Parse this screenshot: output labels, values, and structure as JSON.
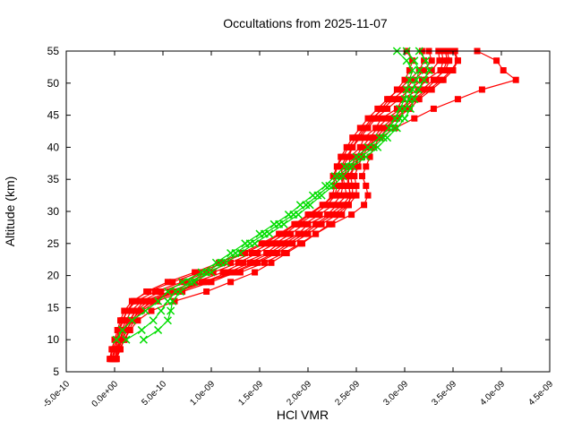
{
  "title": "Occultations from 2025-11-07",
  "x_axis": {
    "label": "HCl VMR",
    "tick_labels": [
      "-5.0e-10",
      "0.0e+00",
      "5.0e-10",
      "1.0e-09",
      "1.5e-09",
      "2.0e-09",
      "2.5e-09",
      "3.0e-09",
      "3.5e-09",
      "4.0e-09",
      "4.5e-09"
    ],
    "tick_values_1e9": [
      -0.5,
      0.0,
      0.5,
      1.0,
      1.5,
      2.0,
      2.5,
      3.0,
      3.5,
      4.0,
      4.5
    ],
    "range_1e9": [
      -0.5,
      4.5
    ]
  },
  "y_axis": {
    "label": "Altitude (km)",
    "tick_labels": [
      "5",
      "10",
      "15",
      "20",
      "25",
      "30",
      "35",
      "40",
      "45",
      "50",
      "55"
    ],
    "tick_values": [
      5,
      10,
      15,
      20,
      25,
      30,
      35,
      40,
      45,
      50,
      55
    ],
    "range": [
      5,
      55
    ]
  },
  "colors": {
    "red_series": "#ff0000",
    "green_series": "#00dd00",
    "frame": "#000000",
    "text": "#000000",
    "background": "#ffffff"
  },
  "chart_data": {
    "type": "line",
    "title": "Occultations from 2025-11-07",
    "xlabel": "HCl VMR",
    "ylabel": "Altitude (km)",
    "xlim_1e9": [
      -0.5,
      4.5
    ],
    "ylim_km": [
      5,
      55
    ],
    "x_value_scale": "values given in units of 1e-9 VMR",
    "grid": "off",
    "legend": "none",
    "ticks": "inward, mirrored on top and right frame",
    "altitudes_red_km": [
      7,
      8.5,
      10,
      11.5,
      13,
      14.5,
      16,
      17.5,
      19,
      20.5,
      22,
      23.5,
      25,
      26.5,
      28,
      29.5,
      31,
      32.5,
      34,
      35.5,
      37,
      38.5,
      40,
      41.5,
      43,
      44.5,
      46,
      47.5,
      49,
      50.5,
      52,
      53.5,
      55
    ],
    "altitudes_green_km": [
      10,
      11.5,
      13,
      14.5,
      16,
      17.5,
      19,
      20.5,
      22,
      23.5,
      25,
      26.5,
      28,
      29.5,
      31,
      32.5,
      34,
      35.5,
      37,
      38.5,
      40,
      41.5,
      43,
      44.5,
      46,
      47.5,
      49,
      50.5,
      52,
      53.5,
      55
    ],
    "series": [
      {
        "name": "red-profile-1",
        "group": "red",
        "color": "#ff0000",
        "marker": "square",
        "alt_grid": "altitudes_red_km",
        "vmr_1e9": [
          -0.02,
          0.01,
          0.06,
          0.08,
          0.15,
          0.22,
          0.3,
          0.57,
          0.83,
          1.12,
          1.33,
          1.57,
          1.7,
          1.9,
          2.0,
          2.2,
          2.3,
          2.4,
          2.38,
          2.36,
          2.42,
          2.44,
          2.54,
          2.58,
          2.7,
          2.76,
          2.92,
          2.98,
          3.14,
          3.22,
          3.37,
          3.4,
          3.38
        ]
      },
      {
        "name": "red-profile-2",
        "group": "red",
        "color": "#ff0000",
        "marker": "square",
        "alt_grid": "altitudes_red_km",
        "vmr_1e9": [
          0.02,
          0.05,
          0.1,
          0.15,
          0.2,
          0.28,
          0.44,
          0.7,
          1.0,
          1.25,
          1.48,
          1.68,
          1.84,
          2.0,
          2.14,
          2.3,
          2.42,
          2.5,
          2.5,
          2.48,
          2.52,
          2.56,
          2.62,
          2.7,
          2.8,
          2.9,
          3.02,
          3.12,
          3.25,
          3.38,
          3.48,
          3.55,
          3.5
        ]
      },
      {
        "name": "red-profile-3",
        "group": "red",
        "color": "#ff0000",
        "marker": "square",
        "alt_grid": "altitudes_red_km",
        "vmr_1e9": [
          -0.04,
          -0.02,
          0.02,
          0.04,
          0.08,
          0.13,
          0.22,
          0.42,
          0.7,
          0.95,
          1.2,
          1.42,
          1.6,
          1.76,
          1.9,
          2.06,
          2.2,
          2.28,
          2.3,
          2.28,
          2.3,
          2.36,
          2.42,
          2.5,
          2.58,
          2.66,
          2.78,
          2.88,
          3.0,
          3.1,
          3.2,
          3.28,
          3.25
        ]
      },
      {
        "name": "red-profile-4",
        "group": "red",
        "color": "#ff0000",
        "marker": "square",
        "alt_grid": "altitudes_red_km",
        "vmr_1e9": [
          0.02,
          0.06,
          0.1,
          0.16,
          0.24,
          0.38,
          0.62,
          0.95,
          1.2,
          1.45,
          1.62,
          1.78,
          1.94,
          2.08,
          2.22,
          2.35,
          2.42,
          2.44,
          2.42,
          2.42,
          2.48,
          2.52,
          2.6,
          2.68,
          2.76,
          2.88,
          2.98,
          3.1,
          3.22,
          3.32,
          3.4,
          3.44,
          3.42
        ]
      },
      {
        "name": "red-profile-5",
        "group": "red",
        "color": "#ff0000",
        "marker": "square",
        "alt_grid": "altitudes_red_km",
        "vmr_1e9": [
          -0.03,
          0.0,
          0.03,
          0.05,
          0.09,
          0.13,
          0.2,
          0.33,
          0.55,
          0.83,
          1.08,
          1.32,
          1.52,
          1.7,
          1.86,
          2.0,
          2.15,
          2.28,
          2.35,
          2.36,
          2.34,
          2.4,
          2.46,
          2.54,
          2.62,
          2.7,
          2.82,
          2.94,
          3.05,
          3.18,
          3.28,
          3.36,
          3.35
        ]
      },
      {
        "name": "red-profile-6",
        "group": "red",
        "color": "#ff0000",
        "marker": "square",
        "alt_grid": "altitudes_red_km",
        "vmr_1e9": [
          0.0,
          0.03,
          0.07,
          0.12,
          0.18,
          0.25,
          0.4,
          0.65,
          0.95,
          1.22,
          1.45,
          1.65,
          1.8,
          1.96,
          2.1,
          2.26,
          2.4,
          2.46,
          2.46,
          2.44,
          2.48,
          2.54,
          2.6,
          2.75,
          2.9,
          3.1,
          3.3,
          3.55,
          3.8,
          4.15,
          4.02,
          3.95,
          3.75
        ]
      },
      {
        "name": "red-profile-7",
        "group": "red",
        "color": "#ff0000",
        "marker": "square",
        "alt_grid": "altitudes_red_km",
        "vmr_1e9": [
          -0.02,
          0.0,
          0.04,
          0.07,
          0.12,
          0.17,
          0.28,
          0.48,
          0.75,
          1.02,
          1.28,
          1.48,
          1.66,
          1.82,
          1.96,
          2.12,
          2.26,
          2.34,
          2.36,
          2.34,
          2.36,
          2.42,
          2.46,
          2.52,
          2.6,
          2.68,
          2.76,
          2.84,
          2.92,
          3.0,
          3.05,
          3.08,
          3.02
        ]
      },
      {
        "name": "red-profile-8",
        "group": "red",
        "color": "#ff0000",
        "marker": "square",
        "alt_grid": "altitudes_red_km",
        "vmr_1e9": [
          0.01,
          0.04,
          0.08,
          0.13,
          0.18,
          0.26,
          0.38,
          0.62,
          0.92,
          1.18,
          1.4,
          1.6,
          1.76,
          1.92,
          2.08,
          2.22,
          2.36,
          2.44,
          2.42,
          2.4,
          2.44,
          2.5,
          2.56,
          2.64,
          2.72,
          2.82,
          2.96,
          3.06,
          3.18,
          3.3,
          3.42,
          3.46,
          3.44
        ]
      },
      {
        "name": "red-profile-9",
        "group": "red",
        "color": "#ff0000",
        "marker": "square",
        "alt_grid": "altitudes_red_km",
        "vmr_1e9": [
          0.0,
          0.02,
          0.06,
          0.1,
          0.16,
          0.22,
          0.35,
          0.6,
          0.9,
          1.3,
          1.55,
          1.75,
          1.92,
          2.08,
          2.25,
          2.45,
          2.58,
          2.62,
          2.6,
          2.56,
          2.6,
          2.64,
          2.68,
          2.74,
          2.82,
          2.92,
          3.05,
          3.15,
          3.28,
          3.4,
          3.5,
          3.55,
          3.52
        ]
      },
      {
        "name": "red-profile-10",
        "group": "red",
        "color": "#ff0000",
        "marker": "square",
        "alt_grid": "altitudes_red_km",
        "vmr_1e9": [
          -0.05,
          -0.03,
          0.0,
          0.03,
          0.06,
          0.1,
          0.18,
          0.35,
          0.6,
          0.88,
          1.12,
          1.35,
          1.55,
          1.72,
          1.88,
          2.02,
          2.16,
          2.25,
          2.28,
          2.26,
          2.3,
          2.34,
          2.4,
          2.46,
          2.54,
          2.62,
          2.72,
          2.82,
          2.94,
          3.05,
          3.15,
          3.2,
          3.18
        ]
      },
      {
        "name": "green-profile-1",
        "group": "green",
        "color": "#00dd00",
        "marker": "cross",
        "alt_grid": "altitudes_green_km",
        "vmr_1e9": [
          0.12,
          0.28,
          0.4,
          0.48,
          0.55,
          0.63,
          0.78,
          0.95,
          1.1,
          1.25,
          1.4,
          1.55,
          1.7,
          1.85,
          1.98,
          2.1,
          2.22,
          2.32,
          2.42,
          2.55,
          2.68,
          2.78,
          2.88,
          2.95,
          3.0,
          3.05,
          3.08,
          3.12,
          3.15,
          3.1,
          3.02
        ]
      },
      {
        "name": "green-profile-2",
        "group": "green",
        "color": "#00dd00",
        "marker": "cross",
        "alt_grid": "altitudes_green_km",
        "vmr_1e9": [
          0.3,
          0.45,
          0.55,
          0.58,
          0.6,
          0.68,
          0.82,
          1.0,
          1.15,
          1.3,
          1.45,
          1.6,
          1.75,
          1.9,
          2.02,
          2.14,
          2.26,
          2.36,
          2.46,
          2.6,
          2.72,
          2.82,
          2.92,
          3.0,
          3.06,
          3.1,
          3.14,
          3.2,
          3.25,
          3.22,
          3.15
        ]
      },
      {
        "name": "green-profile-3",
        "group": "green",
        "color": "#00dd00",
        "marker": "cross",
        "alt_grid": "altitudes_green_km",
        "vmr_1e9": [
          0.02,
          0.08,
          0.18,
          0.32,
          0.45,
          0.55,
          0.7,
          0.9,
          1.05,
          1.2,
          1.35,
          1.5,
          1.65,
          1.8,
          1.92,
          2.05,
          2.18,
          2.28,
          2.38,
          2.5,
          2.62,
          2.74,
          2.84,
          2.9,
          2.95,
          3.0,
          3.02,
          3.05,
          3.08,
          3.02,
          2.92
        ]
      }
    ]
  }
}
